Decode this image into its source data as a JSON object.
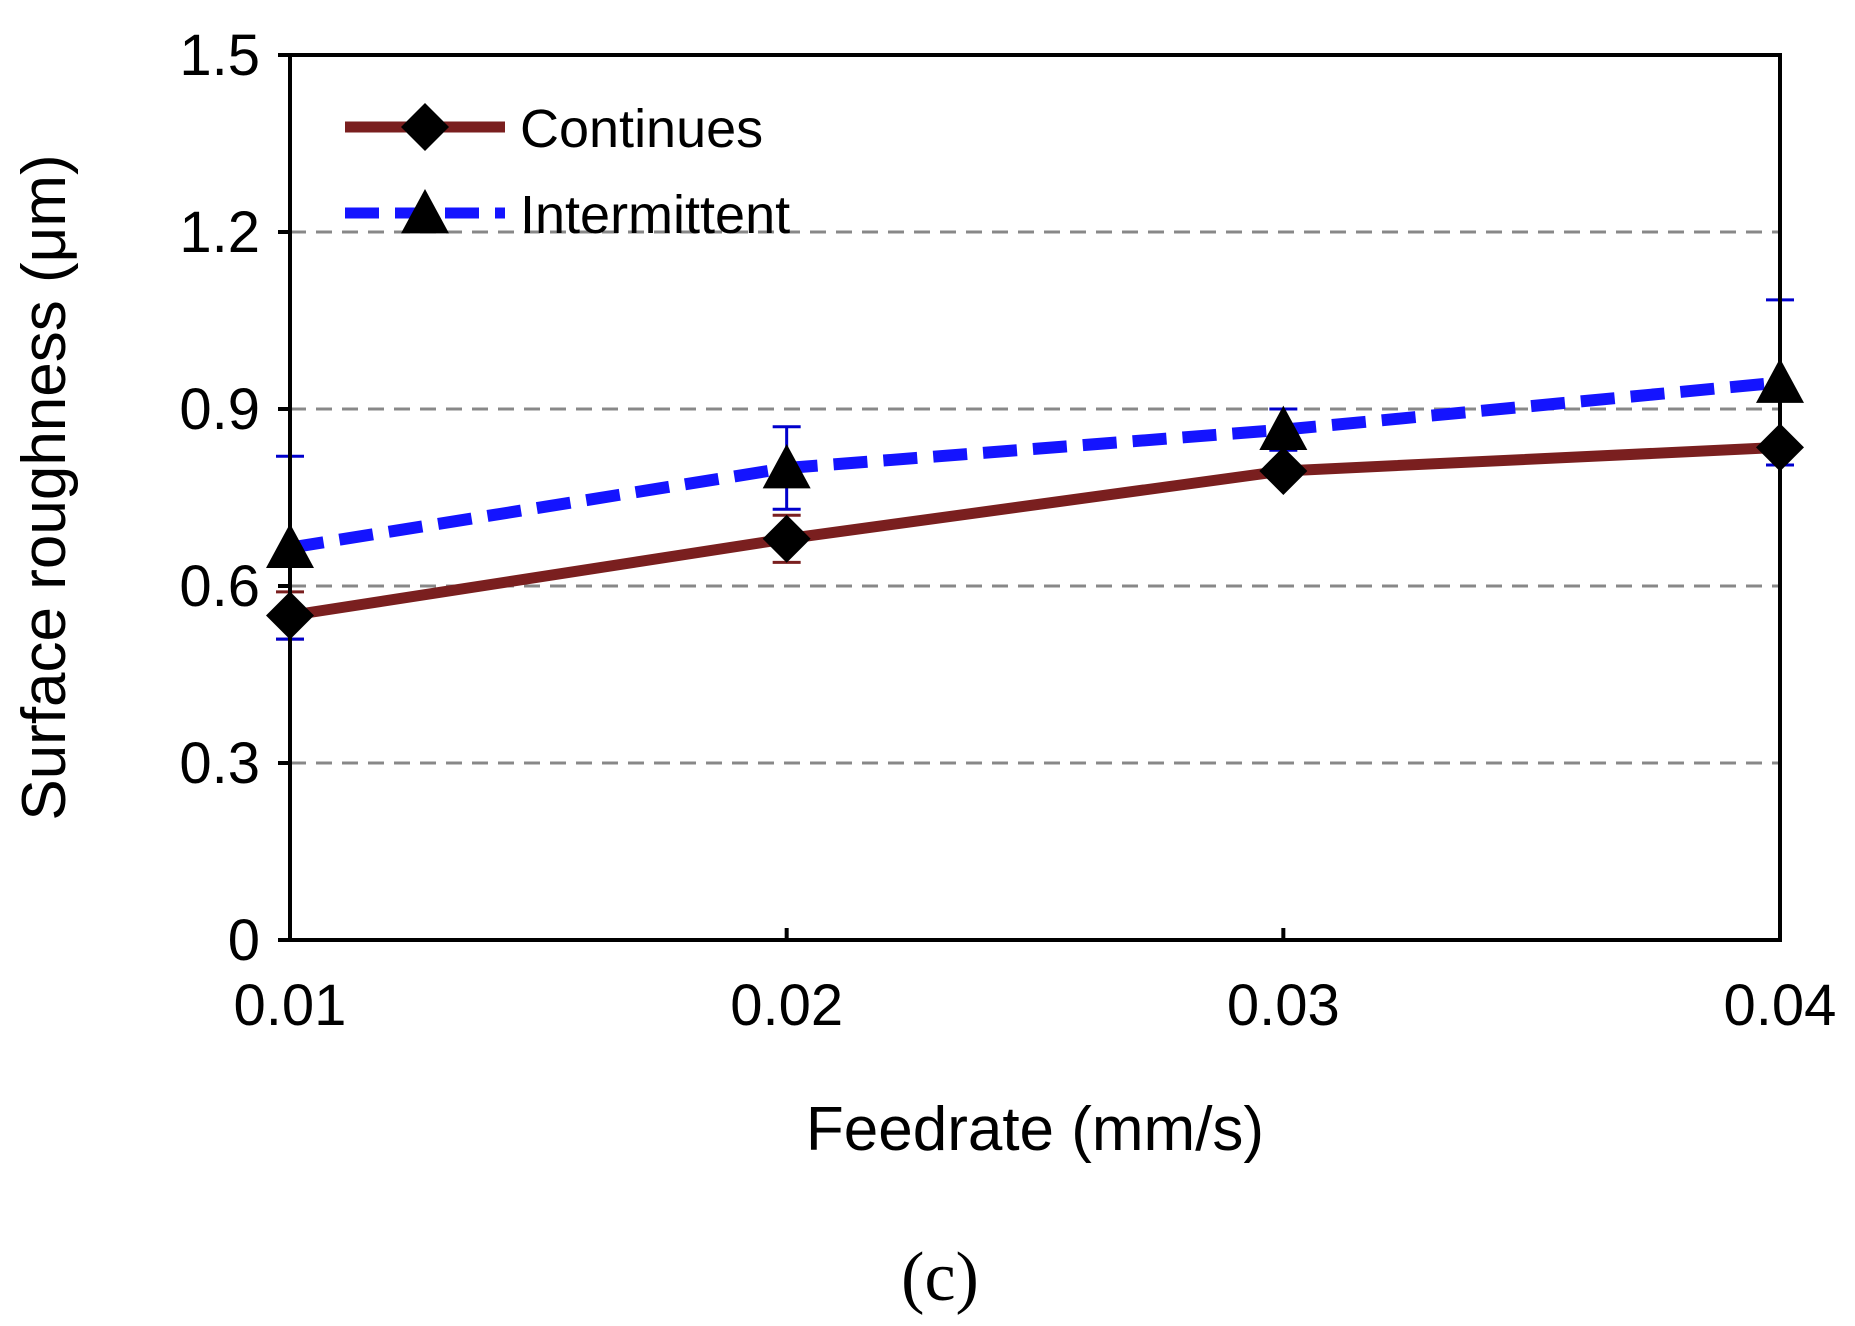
{
  "chart_data": {
    "type": "line",
    "title": "",
    "xlabel": "Feedrate (mm/s)",
    "ylabel": "Surface roughness (μm)",
    "x": [
      0.01,
      0.02,
      0.03,
      0.04
    ],
    "x_tick_labels": [
      "0.01",
      "0.02",
      "0.03",
      "0.04"
    ],
    "ylim": [
      0,
      1.5
    ],
    "y_ticks": [
      0,
      0.3,
      0.6,
      0.9,
      1.2,
      1.5
    ],
    "y_tick_labels": [
      "0",
      "0.3",
      "0.6",
      "0.9",
      "1.2",
      "1.5"
    ],
    "grid": "horizontal dashed",
    "legend_position": "top-left",
    "series": [
      {
        "name": "Continues",
        "values": [
          0.55,
          0.68,
          0.795,
          0.835
        ],
        "errors": [
          0.04,
          0.04,
          0.01,
          0.01
        ],
        "marker": "diamond",
        "line_style": "solid",
        "color": "#7a1f1f",
        "error_color": "#7a1f1f"
      },
      {
        "name": "Intermittent",
        "values": [
          0.665,
          0.8,
          0.865,
          0.945
        ],
        "errors": [
          0.155,
          0.07,
          0.035,
          0.14
        ],
        "marker": "triangle",
        "line_style": "dashed",
        "color": "#1414ff",
        "error_color": "#0000cc"
      }
    ],
    "caption": "(c)"
  }
}
